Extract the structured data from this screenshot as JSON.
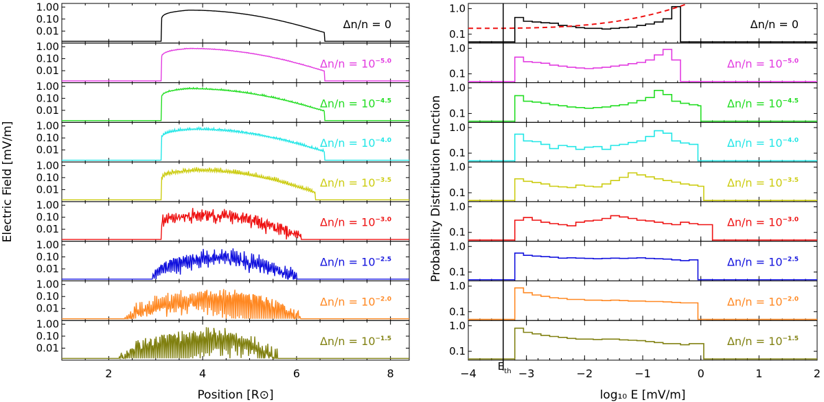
{
  "chart_data": [
    {
      "type": "line",
      "title": "",
      "xlabel": "Position [R⊙]",
      "ylabel": "Electric Field [mV/m]",
      "xlim": [
        1.0,
        8.4
      ],
      "x_ticks": [
        2,
        4,
        6,
        8
      ],
      "ylim_log": [
        0.001,
        2.0
      ],
      "y_tick_labels": [
        "1.00",
        "0.10",
        "0.01"
      ],
      "y_tick_values": [
        1.0,
        0.1,
        0.01
      ],
      "panels": [
        {
          "label": "Δn/n = 0",
          "exponent": null,
          "color": "#000000",
          "onset": 3.12,
          "peak": 3.7,
          "end": 6.6,
          "amp": 0.55,
          "noise": 0.0
        },
        {
          "label": "Δn/n = 10",
          "exponent": "−5.0",
          "color": "#e23be0",
          "onset": 3.12,
          "peak": 3.7,
          "end": 6.6,
          "amp": 0.8,
          "noise": 0.15
        },
        {
          "label": "Δn/n = 10",
          "exponent": "−4.5",
          "color": "#22dd22",
          "onset": 3.12,
          "peak": 3.7,
          "end": 6.6,
          "amp": 0.8,
          "noise": 0.25
        },
        {
          "label": "Δn/n = 10",
          "exponent": "−4.0",
          "color": "#22e6e6",
          "onset": 3.12,
          "peak": 3.8,
          "end": 6.6,
          "amp": 0.8,
          "noise": 0.4
        },
        {
          "label": "Δn/n = 10",
          "exponent": "−3.5",
          "color": "#cccc11",
          "onset": 3.12,
          "peak": 3.9,
          "end": 6.4,
          "amp": 0.8,
          "noise": 0.6
        },
        {
          "label": "Δn/n = 10",
          "exponent": "−3.0",
          "color": "#ee1111",
          "onset": 3.12,
          "peak": 4.0,
          "end": 6.1,
          "amp": 0.8,
          "noise": 0.8
        },
        {
          "label": "Δn/n = 10",
          "exponent": "−2.5",
          "color": "#1111dd",
          "onset": 2.9,
          "peak": 4.2,
          "end": 6.0,
          "amp": 0.8,
          "noise": 0.95
        },
        {
          "label": "Δn/n = 10",
          "exponent": "−2.0",
          "color": "#ff8822",
          "onset": 2.3,
          "peak": 4.2,
          "end": 6.1,
          "amp": 0.8,
          "noise": 1.0
        },
        {
          "label": "Δn/n = 10",
          "exponent": "−1.5",
          "color": "#808010",
          "onset": 2.2,
          "peak": 4.2,
          "end": 5.6,
          "amp": 0.8,
          "noise": 1.0
        }
      ]
    },
    {
      "type": "line",
      "title": "",
      "xlabel": "log₁₀ E [mV/m]",
      "ylabel": "Probability Distribution Function",
      "xlim": [
        -4,
        2
      ],
      "x_ticks": [
        -4,
        -3,
        -2,
        -1,
        0,
        1,
        2
      ],
      "x_tick_labels": [
        "−4",
        "−3",
        "−2",
        "−1",
        "0",
        "1",
        "2"
      ],
      "threshold_label": "E",
      "threshold_subscript": "th",
      "threshold_x": -3.4,
      "y_tick_labels": [
        "1.0",
        "0.1"
      ],
      "y_tick_values": [
        1.0,
        0.1
      ],
      "bin_width": 0.15,
      "fit_curve": {
        "color": "#ee1111",
        "style": "dashed",
        "x_range": [
          -4.0,
          -0.25
        ],
        "y_at_start": 0.17,
        "y_at_end": 1.5
      },
      "panels": [
        {
          "label": "Δn/n = 0",
          "exponent": null,
          "color": "#000000",
          "x_start": -3.2,
          "x_end": -0.35,
          "floor": 0.05,
          "values": [
            0.45,
            0.32,
            0.3,
            0.28,
            0.27,
            0.22,
            0.2,
            0.18,
            0.17,
            0.17,
            0.16,
            0.17,
            0.18,
            0.19,
            0.22,
            0.25,
            0.3,
            0.4,
            1.2
          ]
        },
        {
          "label": "Δn/n = 10",
          "exponent": "−5.0",
          "color": "#e23be0",
          "x_start": -3.2,
          "x_end": -0.35,
          "floor": 0.05,
          "values": [
            0.45,
            0.3,
            0.28,
            0.26,
            0.22,
            0.2,
            0.18,
            0.17,
            0.16,
            0.17,
            0.18,
            0.2,
            0.22,
            0.25,
            0.28,
            0.35,
            0.55,
            0.9,
            0.35
          ]
        },
        {
          "label": "Δn/n = 10",
          "exponent": "−4.5",
          "color": "#22dd22",
          "x_start": -3.2,
          "x_end": 0.0,
          "floor": 0.05,
          "values": [
            0.5,
            0.3,
            0.28,
            0.25,
            0.22,
            0.2,
            0.18,
            0.17,
            0.16,
            0.17,
            0.18,
            0.2,
            0.22,
            0.26,
            0.32,
            0.42,
            0.8,
            0.55,
            0.3,
            0.25,
            0.22,
            0.2
          ]
        },
        {
          "label": "Δn/n = 10",
          "exponent": "−4.0",
          "color": "#22e6e6",
          "x_start": -3.2,
          "x_end": -0.05,
          "floor": 0.05,
          "values": [
            0.55,
            0.3,
            0.28,
            0.22,
            0.15,
            0.2,
            0.18,
            0.14,
            0.17,
            0.18,
            0.14,
            0.2,
            0.22,
            0.26,
            0.3,
            0.45,
            0.75,
            0.6,
            0.3,
            0.25,
            0.22
          ]
        },
        {
          "label": "Δn/n = 10",
          "exponent": "−3.5",
          "color": "#cccc11",
          "x_start": -3.2,
          "x_end": 0.05,
          "floor": 0.05,
          "values": [
            0.35,
            0.28,
            0.25,
            0.22,
            0.18,
            0.17,
            0.16,
            0.2,
            0.18,
            0.17,
            0.22,
            0.3,
            0.4,
            0.6,
            0.5,
            0.42,
            0.35,
            0.3,
            0.26,
            0.22,
            0.2,
            0.18
          ]
        },
        {
          "label": "Δn/n = 10",
          "exponent": "−3.0",
          "color": "#ee1111",
          "x_start": -3.2,
          "x_end": 0.2,
          "floor": 0.05,
          "values": [
            0.3,
            0.38,
            0.3,
            0.25,
            0.22,
            0.2,
            0.18,
            0.25,
            0.28,
            0.3,
            0.35,
            0.45,
            0.4,
            0.35,
            0.3,
            0.28,
            0.25,
            0.22,
            0.2,
            0.25,
            0.22,
            0.2,
            0.2
          ]
        },
        {
          "label": "Δn/n = 10",
          "exponent": "−2.5",
          "color": "#1111dd",
          "x_start": -3.2,
          "x_end": 0.2,
          "floor": 0.05,
          "values": [
            0.55,
            0.45,
            0.42,
            0.4,
            0.38,
            0.35,
            0.36,
            0.35,
            0.34,
            0.33,
            0.34,
            0.35,
            0.34,
            0.35,
            0.36,
            0.34,
            0.33,
            0.32,
            0.3,
            0.28,
            0.3,
            0.05,
            0.05
          ]
        },
        {
          "label": "Δn/n = 10",
          "exponent": "−2.0",
          "color": "#ff8822",
          "x_start": -3.2,
          "x_end": 0.15,
          "floor": 0.05,
          "values": [
            0.85,
            0.55,
            0.45,
            0.4,
            0.35,
            0.33,
            0.3,
            0.3,
            0.28,
            0.28,
            0.27,
            0.28,
            0.27,
            0.26,
            0.26,
            0.25,
            0.25,
            0.24,
            0.23,
            0.22,
            0.22,
            0.05
          ]
        },
        {
          "label": "Δn/n = 10",
          "exponent": "−1.5",
          "color": "#808010",
          "x_start": -3.2,
          "x_end": 0.05,
          "floor": 0.05,
          "values": [
            0.8,
            0.55,
            0.48,
            0.42,
            0.38,
            0.35,
            0.32,
            0.3,
            0.3,
            0.29,
            0.3,
            0.3,
            0.28,
            0.27,
            0.26,
            0.24,
            0.22,
            0.2,
            0.2,
            0.18,
            0.2,
            0.2
          ]
        }
      ]
    }
  ]
}
